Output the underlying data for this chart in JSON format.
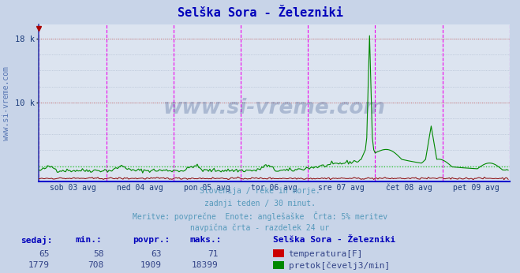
{
  "title": "Selška Sora - Železniki",
  "title_color": "#0000bb",
  "bg_color": "#c8d4e8",
  "plot_bg_color": "#dce4f0",
  "grid_h_color": "#cc6666",
  "grid_v_color": "#ee00ee",
  "grid_dot_color": "#aab8cc",
  "flow_color": "#008800",
  "temp_color": "#880000",
  "avg_line_color": "#22cc22",
  "bottom_spine_color": "#0000cc",
  "left_spine_color": "#3344aa",
  "arrow_color": "#aa0000",
  "watermark_color": "#1a3a7a",
  "sidebar_text_color": "#4466aa",
  "footer_color": "#5599bb",
  "label_color": "#0000bb",
  "value_color": "#334488",
  "x_labels": [
    "sob 03 avg",
    "ned 04 avg",
    "pon 05 avg",
    "tor 06 avg",
    "sre 07 avg",
    "čet 08 avg",
    "pet 09 avg"
  ],
  "y_tick_vals": [
    10000,
    18000
  ],
  "y_tick_labels": [
    "10 k",
    "18 k"
  ],
  "ylim_max": 19800,
  "n_points": 336,
  "temp_min": 58,
  "temp_max": 71,
  "temp_avg": 63,
  "temp_now": 65,
  "flow_min": 708,
  "flow_max": 18399,
  "flow_avg": 1909,
  "flow_now": 1779,
  "subtitle_lines": [
    "Slovenija / reke in morje.",
    "zadnji teden / 30 minut.",
    "Meritve: povprečne  Enote: anglešaške  Črta: 5% meritev",
    "navpična črta - razdelek 24 ur"
  ],
  "legend_title": "Selška Sora - Železniki",
  "legend_items": [
    {
      "label": "temperatura[F]",
      "color": "#cc0000"
    },
    {
      "label": "pretok[čevelj3/min]",
      "color": "#008800"
    }
  ],
  "headers": [
    "sedaj:",
    "min.:",
    "povpr.:",
    "maks.:"
  ],
  "sidebar_label": "www.si-vreme.com"
}
